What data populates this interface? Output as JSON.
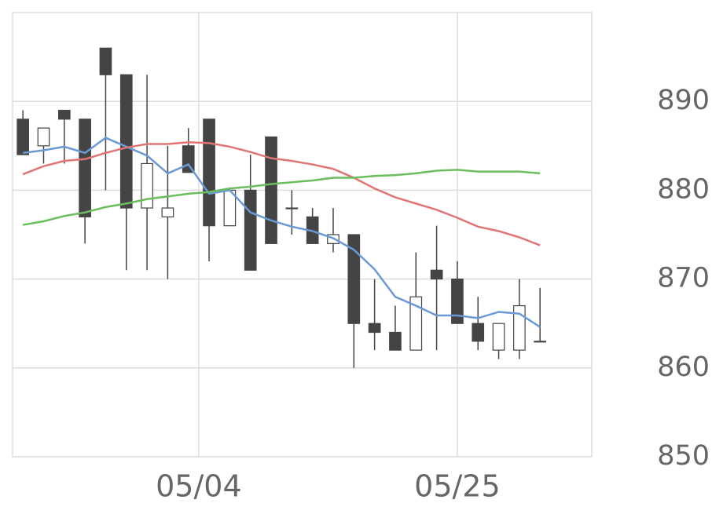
{
  "chart_data": {
    "type": "candlestick",
    "x": [
      0,
      1,
      2,
      3,
      4,
      5,
      6,
      7,
      8,
      9,
      10,
      11,
      12,
      13,
      14,
      15,
      16,
      17,
      18,
      19,
      20,
      21,
      22,
      23,
      24,
      25
    ],
    "open": [
      888,
      885,
      889,
      888,
      896,
      893,
      878,
      877,
      885,
      888,
      876,
      880,
      886,
      878,
      877,
      874,
      875,
      865,
      864,
      862,
      871,
      870,
      865,
      862,
      862,
      863
    ],
    "high": [
      889,
      887,
      889,
      888,
      896,
      893,
      893,
      885,
      887,
      888,
      880,
      884,
      886,
      880,
      878,
      878,
      875,
      870,
      867,
      873,
      876,
      872,
      868,
      865,
      870,
      869
    ],
    "low": [
      884,
      883,
      883,
      874,
      880,
      871,
      871,
      870,
      882,
      872,
      876,
      871,
      874,
      875,
      874,
      873,
      860,
      862,
      862,
      862,
      862,
      865,
      862,
      861,
      861,
      863
    ],
    "close": [
      884,
      887,
      888,
      877,
      893,
      878,
      883,
      878,
      882,
      876,
      880,
      871,
      874,
      878,
      874,
      875,
      865,
      864,
      862,
      868,
      870,
      865,
      863,
      865,
      867,
      863
    ],
    "up_color": "#ffffff",
    "down_color": "#444444",
    "wick_color": "#444444",
    "lines": [
      {
        "color": "#6a9ad6",
        "values": [
          884.2,
          884.5,
          884.9,
          884.2,
          885.9,
          884.9,
          883.9,
          881.9,
          882.9,
          879.6,
          880,
          877.5,
          876.6,
          875.9,
          875.4,
          874.6,
          873.3,
          871.1,
          868,
          867,
          865.9,
          865.9,
          865.6,
          866.3,
          866.1,
          864.6
        ]
      },
      {
        "color": "#e07575",
        "values": [
          881.8,
          882.7,
          883.3,
          883.5,
          884.2,
          884.8,
          885.2,
          885.2,
          885.4,
          885.3,
          884.9,
          884.3,
          883.6,
          883.3,
          882.9,
          882.4,
          881.4,
          880.2,
          879.2,
          878.5,
          877.8,
          876.9,
          875.9,
          875.4,
          874.7,
          873.8
        ]
      },
      {
        "color": "#6cbd5e",
        "values": [
          876.1,
          876.5,
          877.1,
          877.5,
          878.1,
          878.5,
          879,
          879.3,
          879.6,
          879.8,
          880.2,
          880.4,
          880.7,
          880.9,
          881.1,
          881.4,
          881.4,
          881.6,
          881.7,
          881.9,
          882.2,
          882.3,
          882.1,
          882.1,
          882.1,
          881.9
        ]
      }
    ],
    "xlim": [
      -0.5,
      27.5
    ],
    "xticks": [
      {
        "value": 8.5,
        "label": "05/04"
      },
      {
        "value": 21,
        "label": "05/25"
      }
    ],
    "ylim": [
      850,
      900
    ],
    "yticks": [
      850,
      860,
      870,
      880,
      890
    ],
    "grid": true
  }
}
